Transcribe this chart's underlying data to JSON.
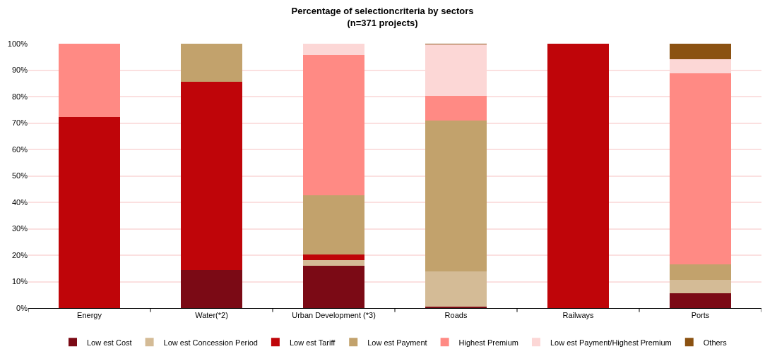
{
  "chart_data": {
    "type": "bar",
    "stacked": true,
    "title": "Percentage of selectioncriteria by sectors\n(n=371 projects)",
    "categories": [
      "Energy",
      "Water(*2)",
      "Urban Development (*3)",
      "Roads",
      "Railways",
      "Ports"
    ],
    "ylim": [
      0,
      100
    ],
    "yticks": [
      {
        "value": 0,
        "label": "0%"
      },
      {
        "value": 10,
        "label": "10%"
      },
      {
        "value": 20,
        "label": "20%"
      },
      {
        "value": 30,
        "label": "30%"
      },
      {
        "value": 40,
        "label": "40%"
      },
      {
        "value": 50,
        "label": "50%"
      },
      {
        "value": 60,
        "label": "60%"
      },
      {
        "value": 70,
        "label": "70%"
      },
      {
        "value": 80,
        "label": "80%"
      },
      {
        "value": 90,
        "label": "90%"
      },
      {
        "value": 100,
        "label": "100%"
      }
    ],
    "grid": "y",
    "legend": "bottom",
    "series": [
      {
        "name": "Low est Cost",
        "color": "#7b0a15",
        "values": [
          0,
          14.3,
          16.1,
          0.5,
          0,
          5.6
        ]
      },
      {
        "name": "Low est Concession Period",
        "color": "#d4bb96",
        "values": [
          0,
          0,
          2.0,
          13.3,
          0,
          5.2
        ]
      },
      {
        "name": "Low est Tariff",
        "color": "#bf0509",
        "values": [
          72.2,
          71.4,
          2.3,
          0,
          100,
          0
        ]
      },
      {
        "name": "Low est Payment",
        "color": "#c2a26c",
        "values": [
          0,
          14.3,
          22.3,
          57.1,
          0,
          5.8
        ]
      },
      {
        "name": "Highest Premium",
        "color": "#ff8a84",
        "values": [
          27.8,
          0,
          53.0,
          9.3,
          0,
          72.3
        ]
      },
      {
        "name": "Low est Payment/Highest Premium",
        "color": "#fcd7d6",
        "values": [
          0,
          0,
          4.3,
          19.5,
          0,
          5.3
        ]
      },
      {
        "name": "Others",
        "color": "#8b5212",
        "values": [
          0,
          0,
          0,
          0.3,
          0,
          5.8
        ]
      }
    ]
  }
}
